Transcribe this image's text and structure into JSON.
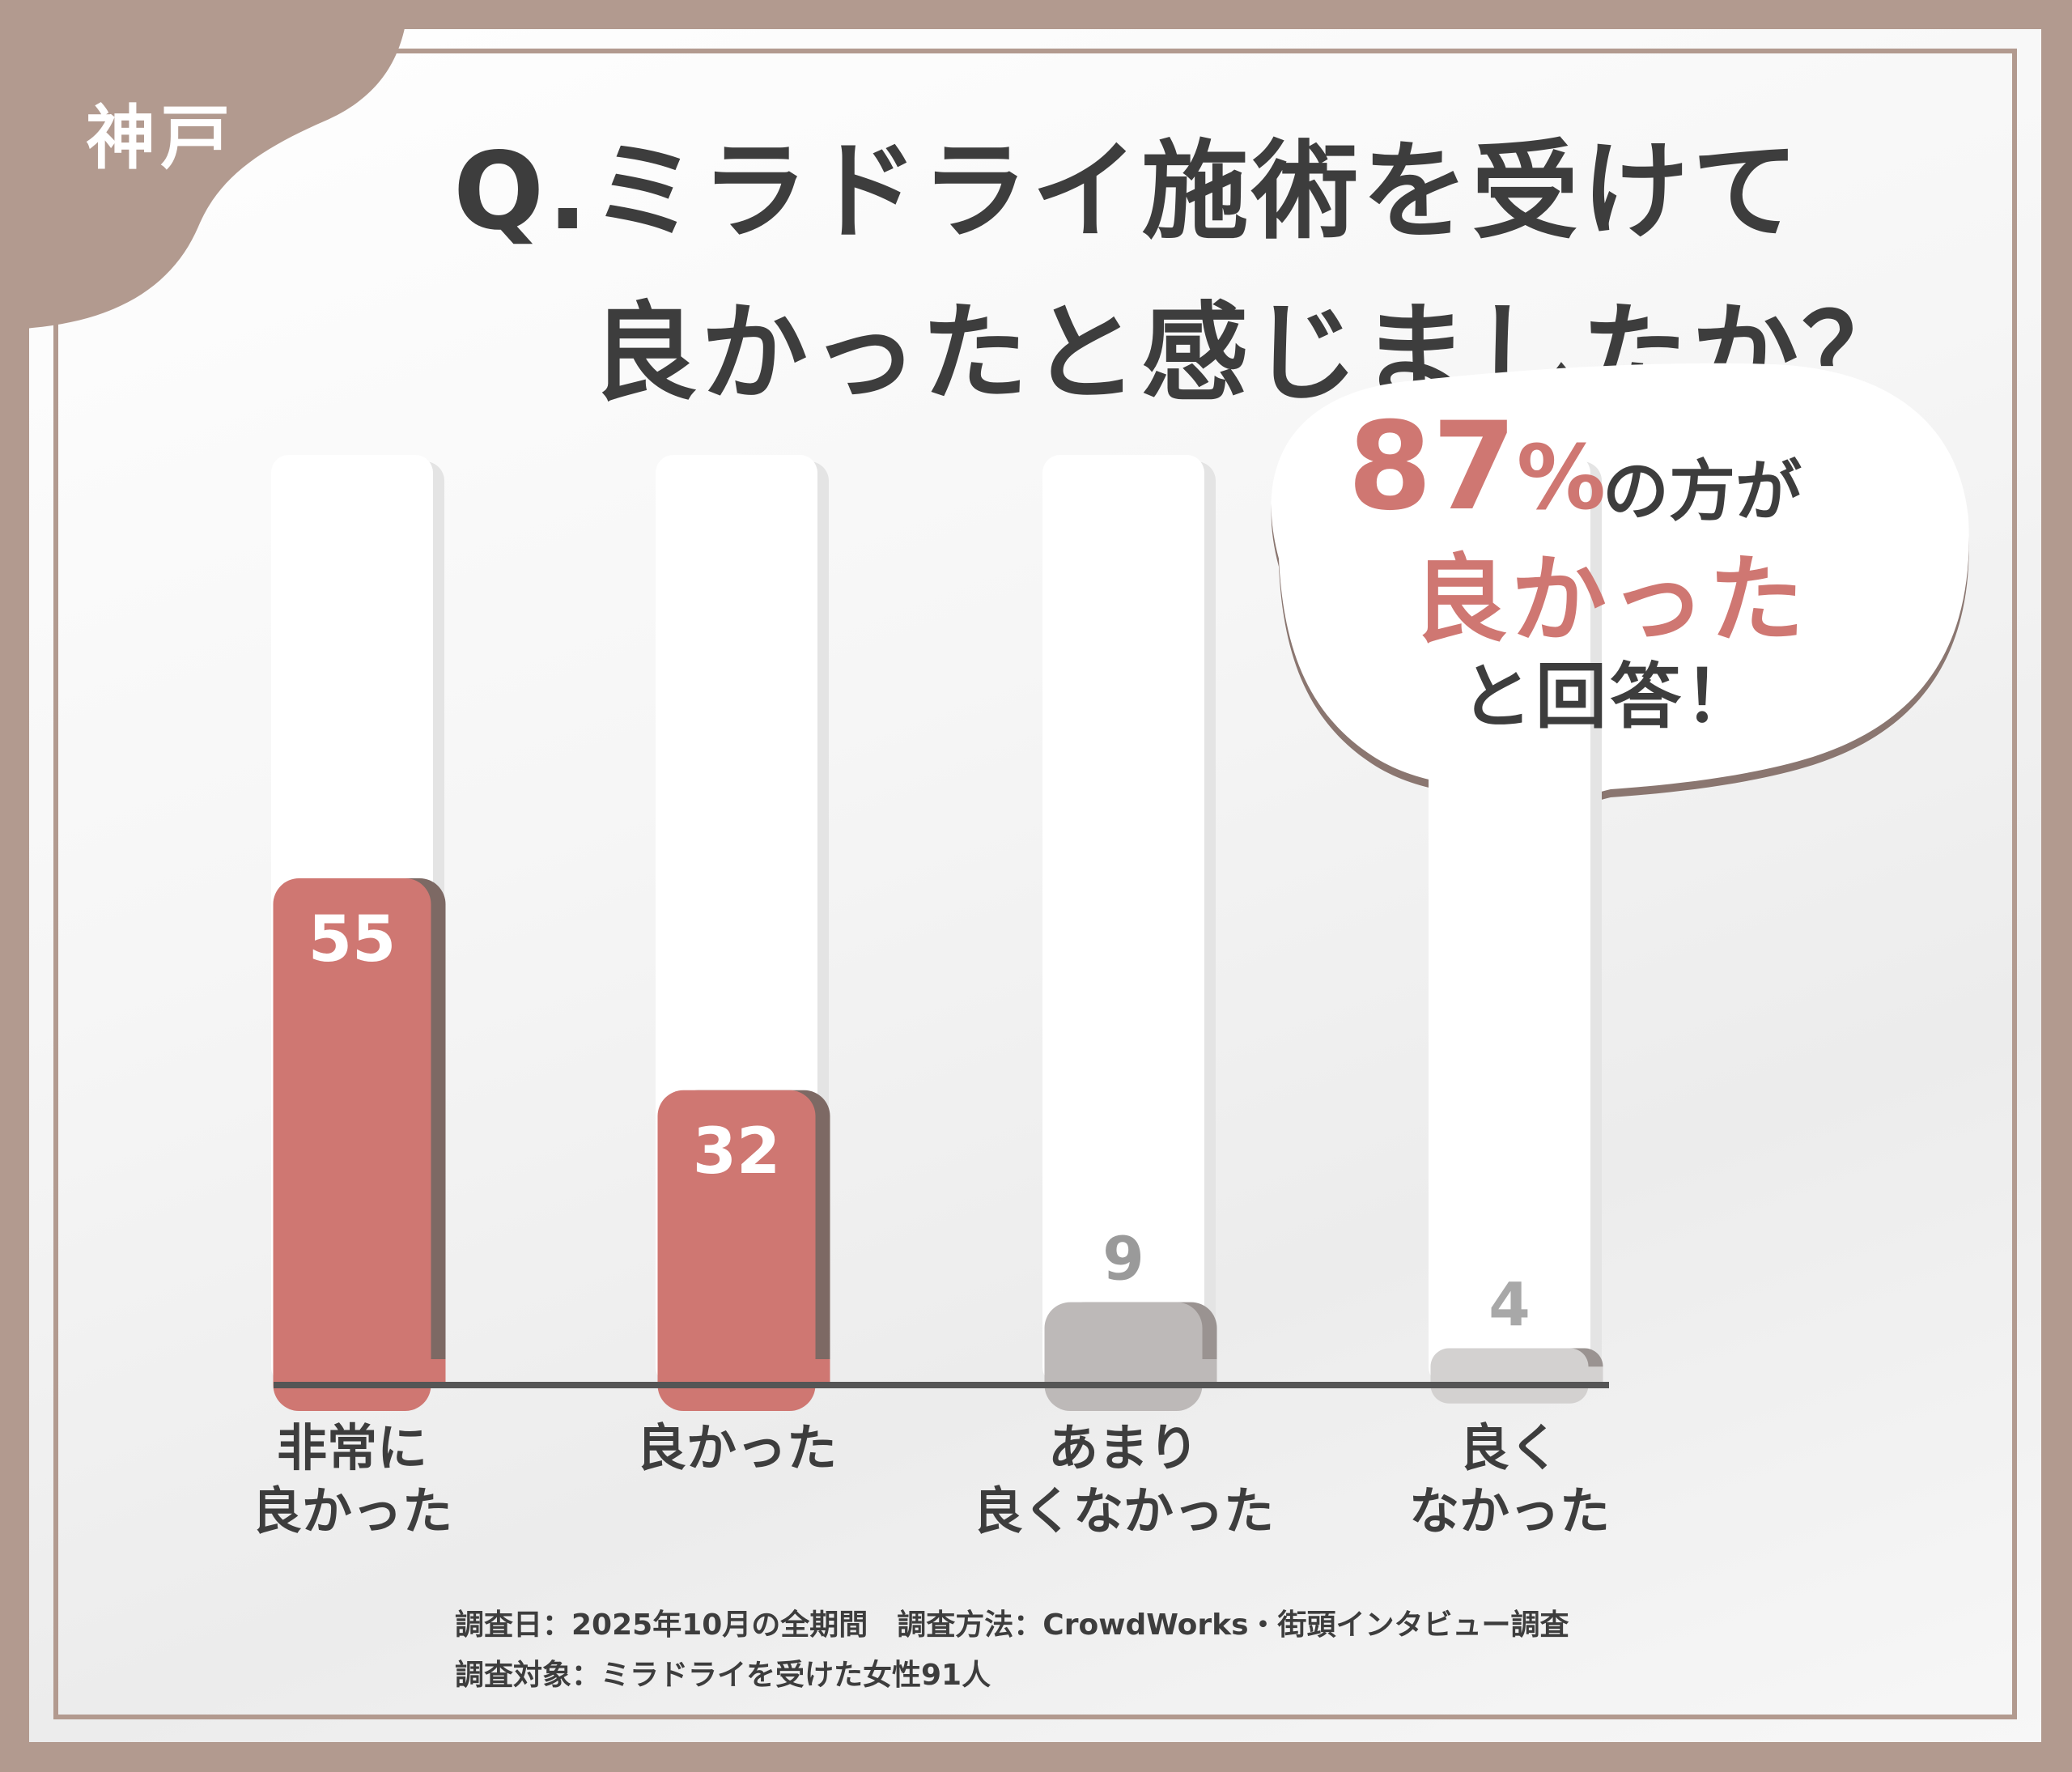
{
  "city": "神戸",
  "title_line1": "Q.ミラドライ施術を受けて",
  "title_line2": "良かったと感じましたか？",
  "callout": {
    "percent": "87",
    "percent_sign": "%",
    "text1": "の方が",
    "text2": "良かった",
    "text3": "と回答！"
  },
  "colors": {
    "frame": "#b29a8f",
    "accent": "#cf7772",
    "neutral": "#bdb9b8",
    "light": "#d3d1d0",
    "text": "#3d3d3d"
  },
  "chart_data": {
    "type": "bar",
    "categories": [
      [
        "非常に",
        "良かった"
      ],
      [
        "良かった"
      ],
      [
        "あまり",
        "良くなかった"
      ],
      [
        "良く",
        "なかった"
      ]
    ],
    "values": [
      55,
      32,
      9,
      4
    ],
    "ylim": [
      0,
      100
    ],
    "grid": false,
    "bar_colors": [
      "#cf7772",
      "#cf7772",
      "#bdb9b8",
      "#d3d1d0"
    ],
    "label_colors": [
      "#ffffff",
      "#ffffff",
      "#9a9a9a",
      "#a8a8a8"
    ]
  },
  "notes": {
    "line1": "調査日：2025年10月の全期間　調査方法：CrowdWorks・街頭インタビュー調査",
    "line2": "調査対象：ミラドライを受けた女性91人"
  }
}
